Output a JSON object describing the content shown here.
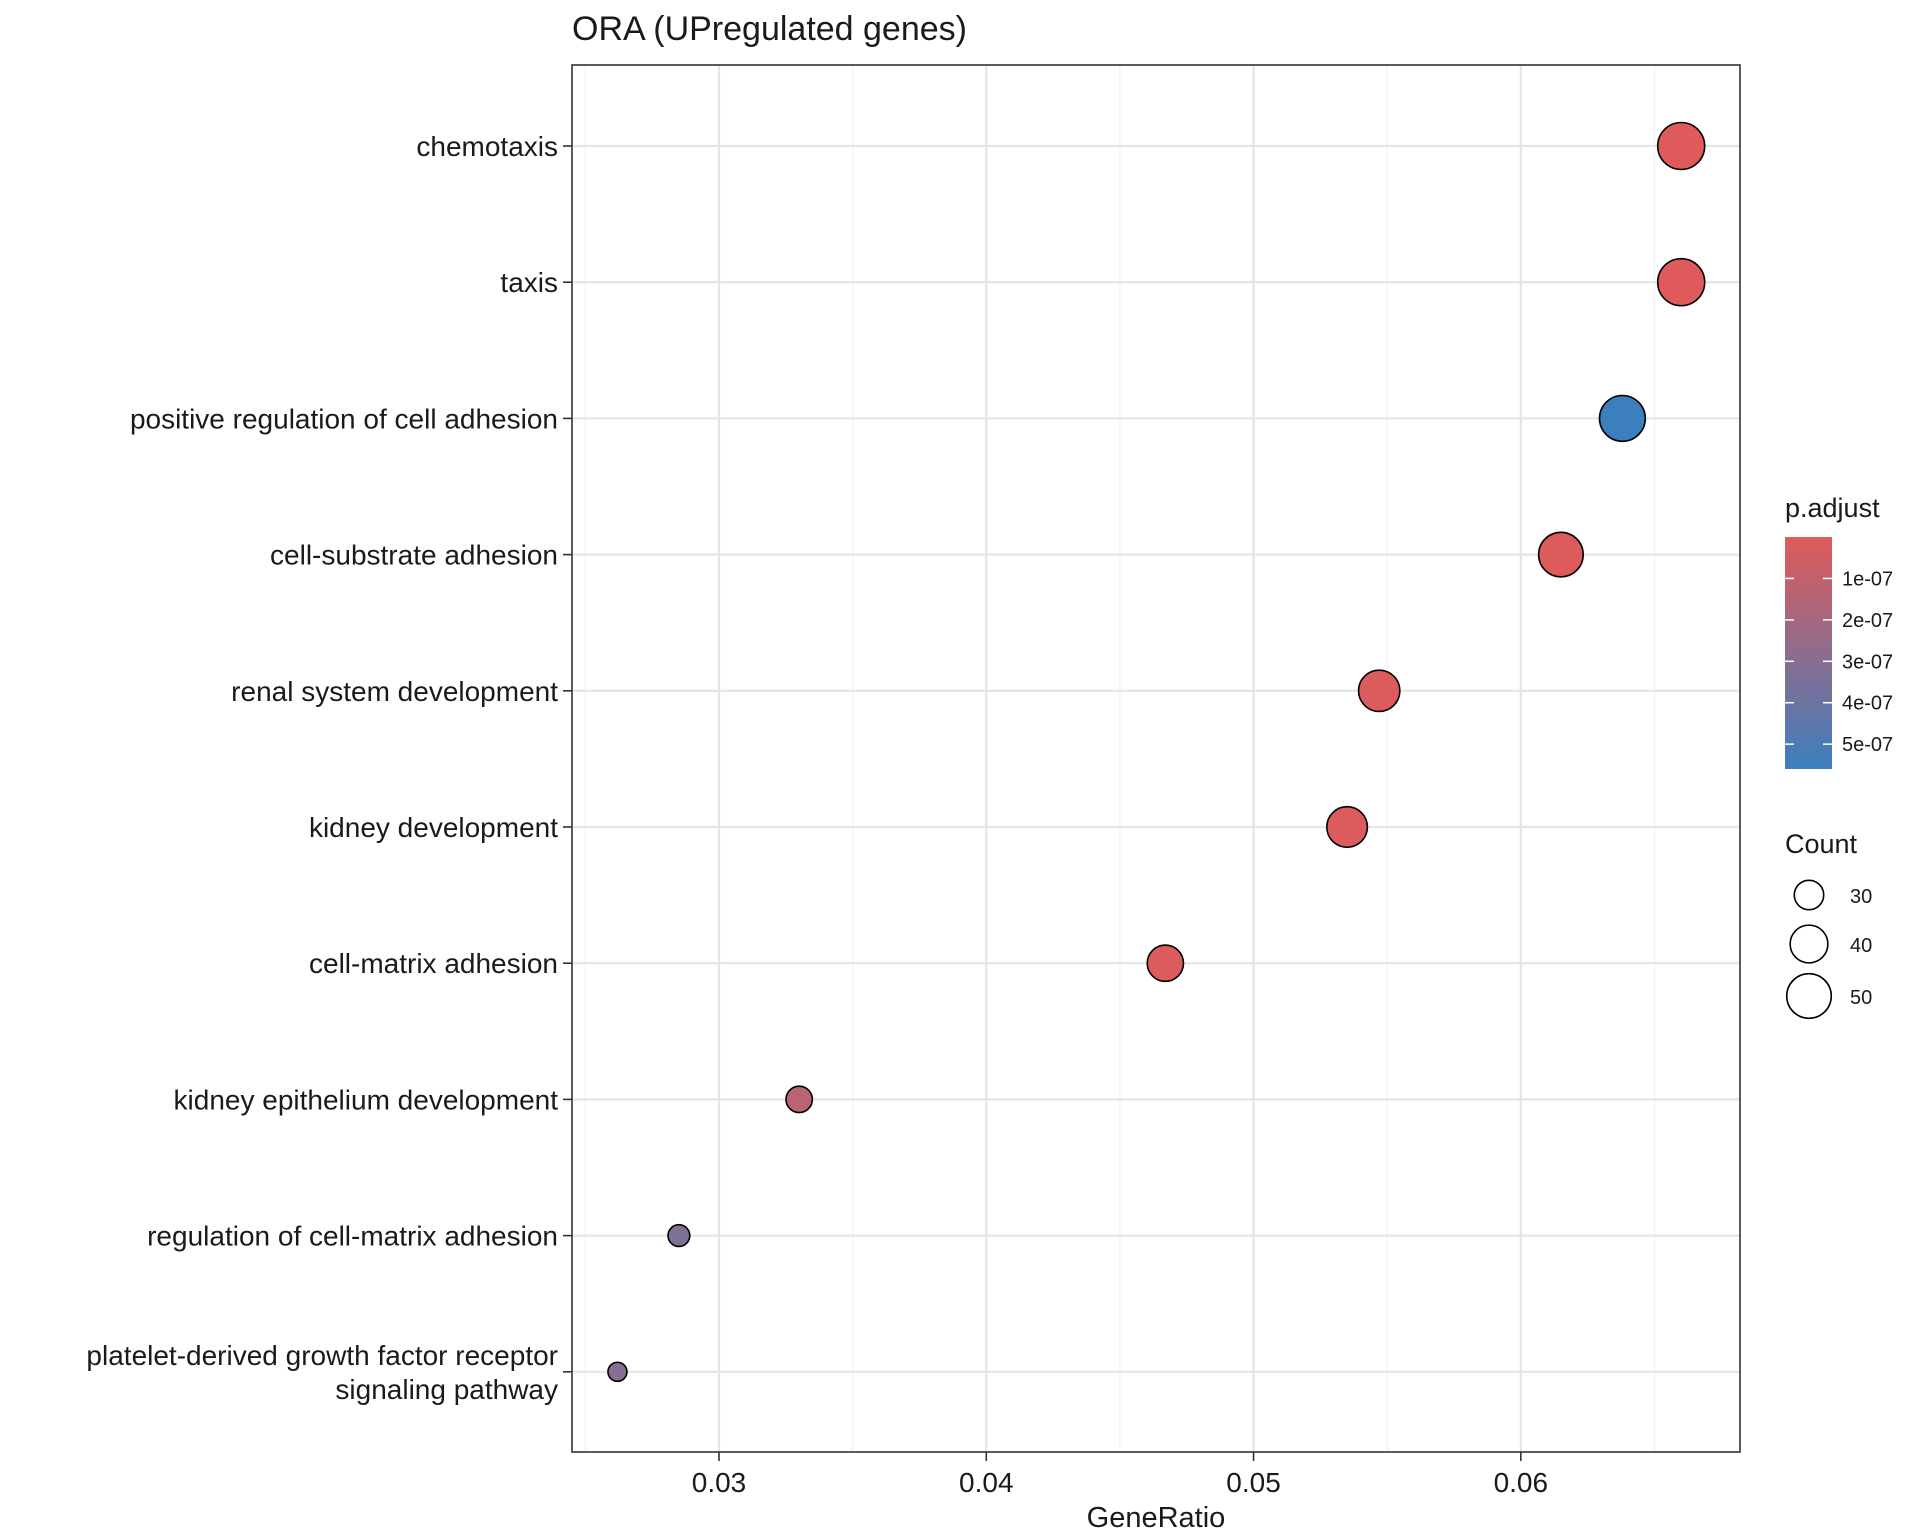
{
  "chart_data": {
    "type": "scatter",
    "title": "ORA (UPregulated genes)",
    "xlabel": "GeneRatio",
    "ylabel": "",
    "xlim": [
      0.0245,
      0.0682
    ],
    "xticks": [
      0.03,
      0.04,
      0.05,
      0.06
    ],
    "xtick_labels": [
      "0.03",
      "0.04",
      "0.05",
      "0.06"
    ],
    "grid": true,
    "colors": {
      "low": "#e05a5a",
      "high": "#3c7fbf"
    },
    "categories": [
      {
        "label": [
          "chemotaxis"
        ],
        "gene_ratio": 0.066,
        "count": 54,
        "p_adjust": 5e-09
      },
      {
        "label": [
          "taxis"
        ],
        "gene_ratio": 0.066,
        "count": 54,
        "p_adjust": 5e-09
      },
      {
        "label": [
          "positive regulation of cell adhesion"
        ],
        "gene_ratio": 0.0638,
        "count": 52,
        "p_adjust": 5.6e-07
      },
      {
        "label": [
          "cell-substrate adhesion"
        ],
        "gene_ratio": 0.0615,
        "count": 50,
        "p_adjust": 1e-08
      },
      {
        "label": [
          "renal system development"
        ],
        "gene_ratio": 0.0547,
        "count": 45,
        "p_adjust": 1.5e-08
      },
      {
        "label": [
          "kidney development"
        ],
        "gene_ratio": 0.0535,
        "count": 44,
        "p_adjust": 1.5e-08
      },
      {
        "label": [
          "cell-matrix adhesion"
        ],
        "gene_ratio": 0.0467,
        "count": 38,
        "p_adjust": 1.5e-08
      },
      {
        "label": [
          "kidney epithelium development"
        ],
        "gene_ratio": 0.033,
        "count": 27,
        "p_adjust": 1.3e-07
      },
      {
        "label": [
          "regulation of cell-matrix adhesion"
        ],
        "gene_ratio": 0.0285,
        "count": 23,
        "p_adjust": 3.3e-07
      },
      {
        "label": [
          "platelet-derived growth factor receptor",
          "signaling pathway"
        ],
        "gene_ratio": 0.0262,
        "count": 21,
        "p_adjust": 3.1e-07
      }
    ],
    "legend": {
      "color_title": "p.adjust",
      "color_range": [
        0,
        5.6e-07
      ],
      "color_ticks": [
        1e-07,
        2e-07,
        3e-07,
        4e-07,
        5e-07
      ],
      "color_tick_labels": [
        "1e-07",
        "2e-07",
        "3e-07",
        "4e-07",
        "5e-07"
      ],
      "size_title": "Count",
      "size_range": [
        21,
        54
      ],
      "size_breaks": [
        30,
        40,
        50
      ],
      "size_labels": [
        "30",
        "40",
        "50"
      ],
      "position": "right"
    }
  }
}
